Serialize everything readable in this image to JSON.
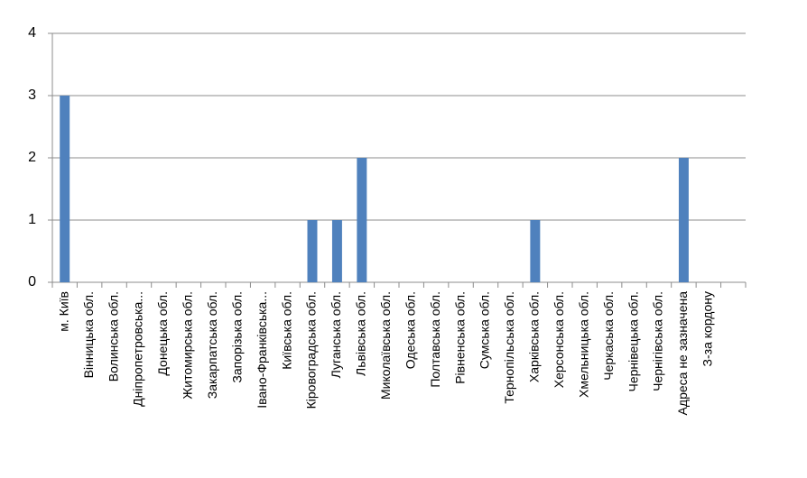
{
  "chart_data": {
    "type": "bar",
    "categories": [
      "м. Київ",
      "Вінницька обл.",
      "Волинська обл.",
      "Дніпропетровська...",
      "Донецька обл.",
      "Житомирська обл.",
      "Закарпатська обл.",
      "Запорізька обл.",
      "Івано-Франківська...",
      "Київська обл.",
      "Кіровоградська обл.",
      "Луганська обл.",
      "Львівська обл.",
      "Миколаївська обл.",
      "Одеська обл.",
      "Полтавська обл.",
      "Рівненська обл.",
      "Сумська обл.",
      "Тернопільська обл.",
      "Харківська обл.",
      "Херсонська обл.",
      "Хмельницька обл.",
      "Черкаська обл.",
      "Чернівецька обл.",
      "Чернігівська обл.",
      "Адреса не зазначена",
      "З-за кордону",
      null
    ],
    "values": [
      3,
      0,
      0,
      0,
      0,
      0,
      0,
      0,
      0,
      0,
      1,
      1,
      2,
      0,
      0,
      0,
      0,
      0,
      0,
      1,
      0,
      0,
      0,
      0,
      0,
      2,
      0,
      null
    ],
    "color": "#4f81bd",
    "ylim": [
      0,
      4
    ],
    "yticks": [
      0,
      1,
      2,
      3,
      4
    ],
    "grid": true
  }
}
